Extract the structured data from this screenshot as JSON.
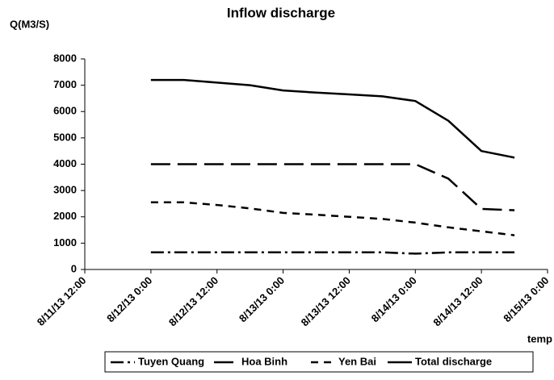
{
  "chart_data": {
    "type": "line",
    "title": "Inflow discharge",
    "y_label": "Q(M3/S)",
    "x_label": "temp",
    "x": [
      "2013-08-12T00:00",
      "2013-08-12T06:00",
      "2013-08-12T12:00",
      "2013-08-12T18:00",
      "2013-08-13T00:00",
      "2013-08-13T06:00",
      "2013-08-13T12:00",
      "2013-08-13T18:00",
      "2013-08-14T00:00",
      "2013-08-14T06:00",
      "2013-08-14T12:00",
      "2013-08-14T18:00"
    ],
    "series": [
      {
        "name": "Tuyen Quang",
        "color": "#000000",
        "dash": "16 5 3 5",
        "values": [
          650,
          650,
          650,
          650,
          650,
          650,
          650,
          650,
          600,
          650,
          650,
          650
        ]
      },
      {
        "name": "Hoa Binh",
        "color": "#000000",
        "dash": "24 9",
        "values": [
          4000,
          4000,
          4000,
          4000,
          4000,
          4000,
          4000,
          4000,
          4000,
          3450,
          2300,
          2250
        ]
      },
      {
        "name": "Yen Bai",
        "color": "#000000",
        "dash": "9 7",
        "values": [
          2550,
          2550,
          2450,
          2320,
          2150,
          2080,
          2000,
          1920,
          1780,
          1600,
          1450,
          1300
        ]
      },
      {
        "name": "Total discharge",
        "color": "#000000",
        "dash": "none",
        "values": [
          7200,
          7200,
          7100,
          7000,
          6800,
          6720,
          6650,
          6580,
          6400,
          5650,
          4500,
          4250
        ]
      }
    ],
    "xlim": [
      "2013-08-11T12:00",
      "2013-08-15T00:00"
    ],
    "xticks": [
      {
        "value": "2013-08-11T12:00",
        "label": "8/11/13 12:00"
      },
      {
        "value": "2013-08-12T00:00",
        "label": "8/12/13 0:00"
      },
      {
        "value": "2013-08-12T12:00",
        "label": "8/12/13 12:00"
      },
      {
        "value": "2013-08-13T00:00",
        "label": "8/13/13 0:00"
      },
      {
        "value": "2013-08-13T12:00",
        "label": "8/13/13 12:00"
      },
      {
        "value": "2013-08-14T00:00",
        "label": "8/14/13 0:00"
      },
      {
        "value": "2013-08-14T12:00",
        "label": "8/14/13 12:00"
      },
      {
        "value": "2013-08-15T00:00",
        "label": "8/15/13 0:00"
      }
    ],
    "ylim": [
      0,
      8000
    ],
    "yticks": [
      0,
      1000,
      2000,
      3000,
      4000,
      5000,
      6000,
      7000,
      8000
    ],
    "legend": "bottom"
  }
}
